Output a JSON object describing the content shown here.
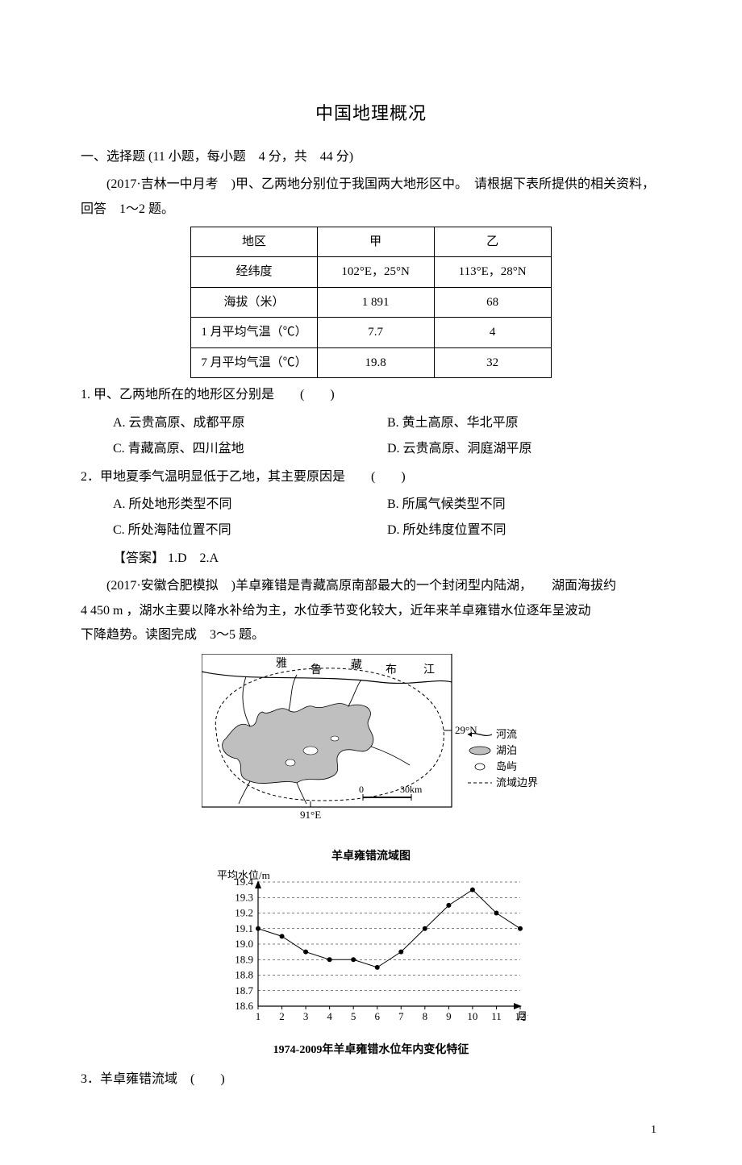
{
  "title": "中国地理概况",
  "section1": "一、选择题 (11 小题，每小题　4 分，共　44 分)",
  "passage1": "(2017·吉林一中月考　)甲、乙两地分别位于我国两大地形区中。　请根据下表所提供的相关资料，回答　1～2 题。",
  "table1": {
    "headers": [
      "地区",
      "甲",
      "乙"
    ],
    "rows": [
      [
        "经纬度",
        "102°E，25°N",
        "113°E，28°N"
      ],
      [
        "海拔（米）",
        "1 891",
        "68"
      ],
      [
        "1 月平均气温（℃）",
        "7.7",
        "4"
      ],
      [
        "7 月平均气温（℃）",
        "19.8",
        "32"
      ]
    ]
  },
  "q1": {
    "stem": "1. 甲、乙两地所在的地形区分别是　　(　　)",
    "A": "A. 云贵高原、成都平原",
    "B": "B. 黄土高原、华北平原",
    "C": "C. 青藏高原、四川盆地",
    "D": "D. 云贵高原、洞庭湖平原"
  },
  "q2": {
    "stem": "2．甲地夏季气温明显低于乙地，其主要原因是　　(　　)",
    "A": "A. 所处地形类型不同",
    "B": "B. 所属气候类型不同",
    "C": "C. 所处海陆位置不同",
    "D": "D. 所处纬度位置不同"
  },
  "ans12": "【答案】 1.D　2.A",
  "passage2a": "(2017·安徽合肥模拟　)羊卓雍错是青藏高原南部最大的一个封闭型内陆湖，　　湖面海拔约",
  "passage2b": "4 450 m ，湖水主要以降水补给为主，水位季节变化较大，近年来羊卓雍错水位逐年呈波动",
  "passage2c": "下降趋势。读图完成　3～5 题。",
  "map": {
    "title": "羊卓雍错流域图",
    "lat_label": "29°N",
    "lon_label": "91°E",
    "scale_start": "0",
    "scale_end": "30km",
    "river_labels": [
      "雅",
      "鲁",
      "藏",
      "布",
      "江"
    ],
    "legend": {
      "river": "河流",
      "lake": "湖泊",
      "island": "岛屿",
      "boundary": "流域边界"
    }
  },
  "chart": {
    "title": "1974-2009年羊卓雍错水位年内变化特征",
    "ylabel": "平均水位/m",
    "xlabel_suffix": "月份",
    "x": [
      1,
      2,
      3,
      4,
      5,
      6,
      7,
      8,
      9,
      10,
      11,
      12
    ],
    "y": [
      19.1,
      19.05,
      18.95,
      18.9,
      18.9,
      18.85,
      18.95,
      19.1,
      19.25,
      19.35,
      19.2,
      19.1
    ],
    "ymin": 18.6,
    "ymax": 19.4,
    "ytick_step": 0.1,
    "series_color": "#000000",
    "grid_color": "#000000",
    "background": "#ffffff",
    "marker": "circle",
    "marker_fill": "#000000",
    "marker_radius": 3,
    "line_width": 1,
    "axis_fontsize": 13
  },
  "q3": {
    "stem": "3．羊卓雍错流域　(　　)"
  },
  "page_number": "1"
}
